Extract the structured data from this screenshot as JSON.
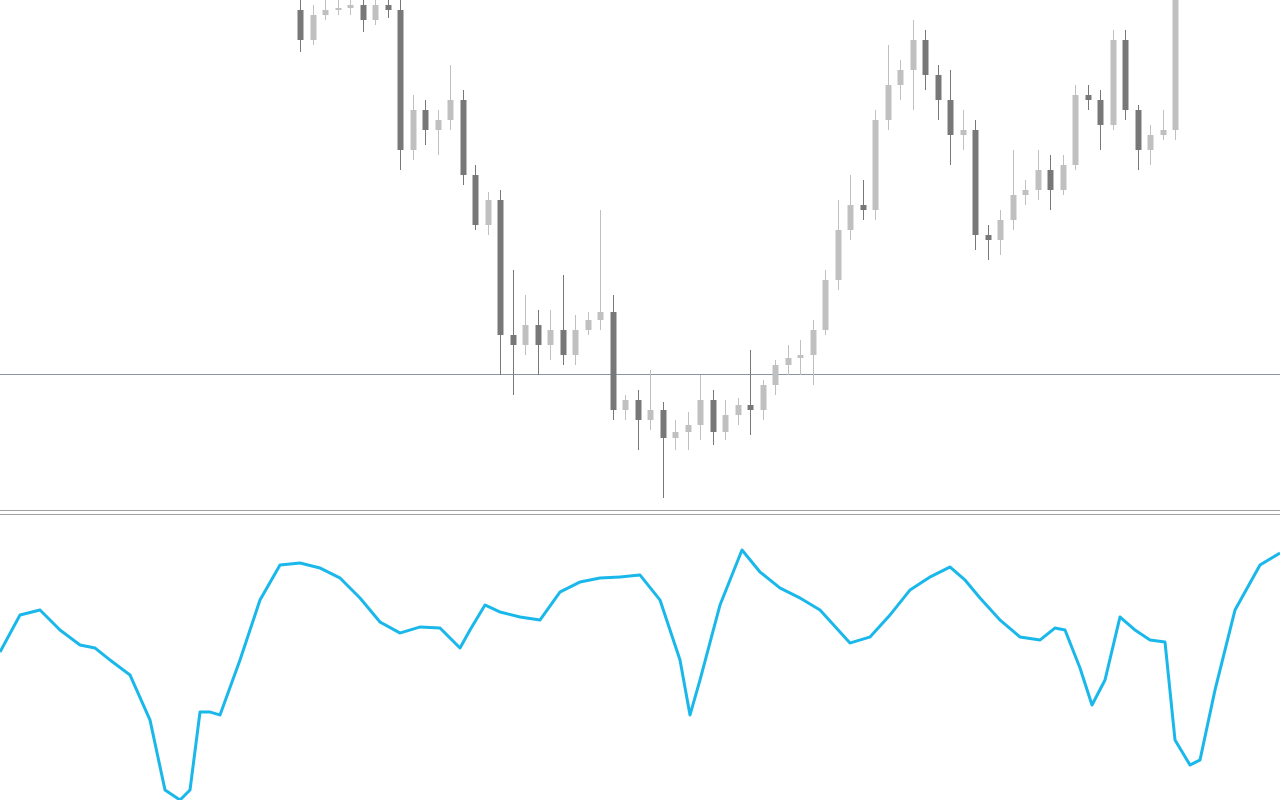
{
  "chart_data": [
    {
      "type": "candlestick",
      "open": [
        500,
        470,
        495,
        500,
        502,
        505,
        490,
        505,
        500,
        360,
        400,
        380,
        390,
        410,
        335,
        285,
        310,
        175,
        165,
        185,
        165,
        180,
        155,
        180,
        190,
        198,
        100,
        110,
        90,
        100,
        72,
        78,
        85,
        110,
        78,
        95,
        105,
        100,
        125,
        145,
        152,
        155,
        180,
        230,
        280,
        305,
        300,
        390,
        425,
        440,
        470,
        435,
        410,
        375,
        380,
        275,
        270,
        290,
        315,
        320,
        340,
        320,
        345,
        415,
        410,
        385,
        470,
        400,
        360,
        375,
        380
      ],
      "high": [
        510,
        505,
        510,
        512,
        515,
        515,
        515,
        515,
        510,
        415,
        410,
        400,
        445,
        420,
        345,
        318,
        320,
        240,
        215,
        200,
        200,
        235,
        195,
        198,
        300,
        215,
        115,
        120,
        140,
        108,
        90,
        98,
        135,
        120,
        110,
        112,
        160,
        130,
        150,
        165,
        170,
        190,
        240,
        310,
        335,
        330,
        400,
        465,
        450,
        490,
        480,
        445,
        440,
        400,
        390,
        285,
        300,
        360,
        330,
        360,
        355,
        355,
        425,
        425,
        420,
        480,
        480,
        405,
        385,
        400,
        520
      ],
      "low": [
        458,
        465,
        490,
        495,
        495,
        478,
        485,
        492,
        340,
        350,
        365,
        355,
        380,
        325,
        280,
        275,
        135,
        115,
        155,
        135,
        150,
        145,
        145,
        175,
        180,
        90,
        90,
        60,
        80,
        12,
        60,
        60,
        70,
        65,
        70,
        85,
        75,
        90,
        115,
        135,
        135,
        125,
        175,
        220,
        270,
        290,
        290,
        380,
        410,
        400,
        420,
        390,
        345,
        360,
        260,
        250,
        255,
        280,
        305,
        310,
        300,
        315,
        340,
        400,
        360,
        380,
        390,
        340,
        345,
        370,
        370
      ],
      "close": [
        470,
        495,
        500,
        502,
        505,
        490,
        505,
        500,
        360,
        400,
        380,
        390,
        410,
        335,
        285,
        310,
        175,
        165,
        185,
        165,
        180,
        155,
        180,
        190,
        198,
        100,
        110,
        90,
        100,
        72,
        78,
        85,
        110,
        78,
        95,
        105,
        100,
        125,
        145,
        152,
        155,
        180,
        230,
        280,
        305,
        300,
        390,
        425,
        440,
        470,
        435,
        410,
        375,
        380,
        275,
        270,
        290,
        315,
        320,
        340,
        320,
        345,
        415,
        410,
        385,
        470,
        400,
        360,
        375,
        380,
        510
      ],
      "up_color": "#c0c0c0",
      "down_color": "#787878",
      "ylim": [
        0,
        510
      ],
      "hline": 136,
      "hline_color": "#8a96a4"
    },
    {
      "type": "line",
      "x": [
        0,
        20,
        40,
        60,
        80,
        95,
        110,
        130,
        150,
        165,
        180,
        190,
        200,
        210,
        220,
        240,
        260,
        280,
        300,
        320,
        340,
        360,
        380,
        400,
        420,
        440,
        460,
        470,
        485,
        500,
        520,
        540,
        560,
        580,
        600,
        620,
        640,
        660,
        680,
        690,
        700,
        720,
        742,
        760,
        780,
        800,
        820,
        850,
        870,
        890,
        910,
        930,
        950,
        965,
        980,
        1000,
        1020,
        1040,
        1055,
        1065,
        1080,
        1092,
        1105,
        1120,
        1135,
        1150,
        1165,
        1175,
        1190,
        1200,
        1215,
        1235,
        1260,
        1280
      ],
      "values": [
        148,
        185,
        190,
        170,
        155,
        152,
        140,
        125,
        80,
        10,
        0,
        10,
        88,
        88,
        85,
        140,
        200,
        235,
        237,
        232,
        222,
        202,
        178,
        167,
        173,
        172,
        152,
        170,
        195,
        188,
        183,
        180,
        208,
        218,
        222,
        223,
        225,
        200,
        140,
        85,
        120,
        195,
        250,
        228,
        212,
        202,
        190,
        157,
        163,
        185,
        210,
        223,
        233,
        220,
        202,
        180,
        163,
        160,
        172,
        170,
        132,
        95,
        120,
        183,
        170,
        160,
        158,
        60,
        35,
        40,
        110,
        190,
        235,
        247
      ],
      "color": "#1ab8ea",
      "xlim": [
        0,
        1280
      ],
      "ylim": [
        0,
        285
      ]
    }
  ]
}
